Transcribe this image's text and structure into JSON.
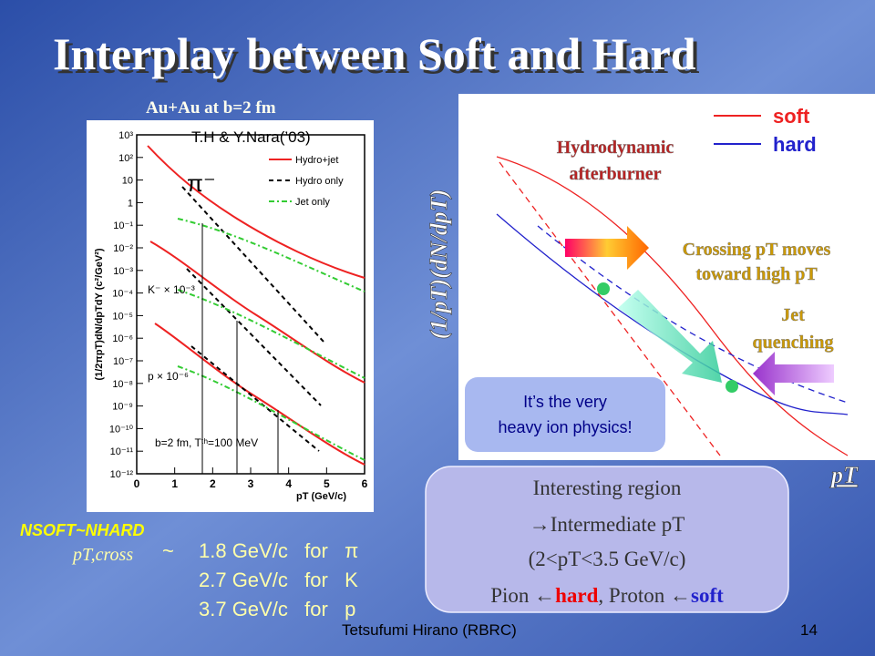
{
  "title": "Interplay between Soft and Hard",
  "left_figure": {
    "caption": "Au+Au at b=2 fm",
    "credit": "T.H & Y.Nara(’03)",
    "y_axis_label": "(1/2πpT)dN/dpTdY (c²/GeV²)",
    "x_axis_label": "pT (GeV/c)",
    "particle": "π⁻",
    "legend": [
      "Hydro+jet",
      "Hydro only",
      "Jet only"
    ],
    "scale_labels": [
      "K⁻ × 10⁻³",
      "p × 10⁻⁶"
    ],
    "condition": "b=2 fm, Tᵗʰ=100 MeV",
    "y_tick_labels": [
      "10³",
      "10²",
      "10",
      "1",
      "10⁻¹",
      "10⁻²",
      "10⁻³",
      "10⁻⁴",
      "10⁻⁵",
      "10⁻⁶",
      "10⁻⁷",
      "10⁻⁸",
      "10⁻⁹",
      "10⁻¹⁰",
      "10⁻¹¹",
      "10⁻¹²"
    ],
    "x_tick_labels": [
      "0",
      "1",
      "2",
      "3",
      "4",
      "5",
      "6"
    ]
  },
  "right_figure": {
    "y_axis_label": "(1/pT)(dN/dpT)",
    "x_axis_label": "pT",
    "legend": [
      "soft",
      "hard"
    ],
    "annotations": [
      "Hydrodynamic",
      "afterburner",
      "Crossing pT moves",
      "toward high pT",
      "Jet",
      "quenching"
    ],
    "callout": [
      "It’s the very",
      "heavy ion physics!"
    ]
  },
  "summary_box": {
    "lines": [
      "Interesting region",
      "→Intermediate pT",
      "(2<pT<3.5 GeV/c)"
    ],
    "last_line": [
      "Pion ←",
      "hard",
      ", Proton ←",
      "soft"
    ]
  },
  "crossing": {
    "label": "NSOFT~NHARD",
    "quantity": "pT,cross",
    "sim": "~",
    "rows": [
      "1.8 GeV/c   for   π",
      "2.7 GeV/c   for   K",
      "3.7 GeV/c   for   p"
    ]
  },
  "footer": {
    "author": "Tetsufumi Hirano (RBRC)",
    "page": "14"
  }
}
